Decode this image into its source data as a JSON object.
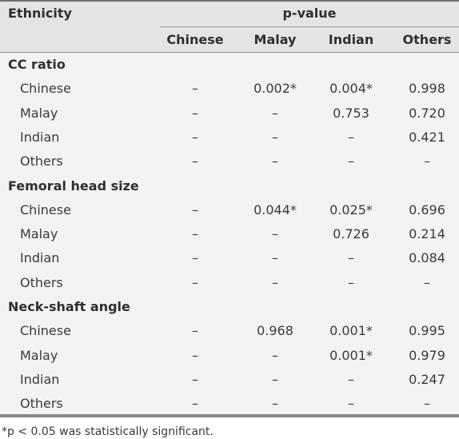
{
  "header": {
    "ethnicity": "Ethnicity",
    "pvalue": "p-value",
    "columns": [
      "Chinese",
      "Malay",
      "Indian",
      "Others"
    ]
  },
  "sections": [
    {
      "title": "CC ratio",
      "rows": [
        {
          "label": "Chinese",
          "values": [
            "–",
            "0.002*",
            "0.004*",
            "0.998"
          ]
        },
        {
          "label": "Malay",
          "values": [
            "–",
            "–",
            "0.753",
            "0.720"
          ]
        },
        {
          "label": "Indian",
          "values": [
            "–",
            "–",
            "–",
            "0.421"
          ]
        },
        {
          "label": "Others",
          "values": [
            "–",
            "–",
            "–",
            "–"
          ]
        }
      ]
    },
    {
      "title": "Femoral head size",
      "rows": [
        {
          "label": "Chinese",
          "values": [
            "–",
            "0.044*",
            "0.025*",
            "0.696"
          ]
        },
        {
          "label": "Malay",
          "values": [
            "–",
            "–",
            "0.726",
            "0.214"
          ]
        },
        {
          "label": "Indian",
          "values": [
            "–",
            "–",
            "–",
            "0.084"
          ]
        },
        {
          "label": "Others",
          "values": [
            "–",
            "–",
            "–",
            "–"
          ]
        }
      ]
    },
    {
      "title": "Neck-shaft angle",
      "rows": [
        {
          "label": "Chinese",
          "values": [
            "–",
            "0.968",
            "0.001*",
            "0.995"
          ]
        },
        {
          "label": "Malay",
          "values": [
            "–",
            "–",
            "0.001*",
            "0.979"
          ]
        },
        {
          "label": "Indian",
          "values": [
            "–",
            "–",
            "–",
            "0.247"
          ]
        },
        {
          "label": "Others",
          "values": [
            "–",
            "–",
            "–",
            "–"
          ]
        }
      ]
    }
  ],
  "footnote": "*p < 0.05 was statistically significant."
}
